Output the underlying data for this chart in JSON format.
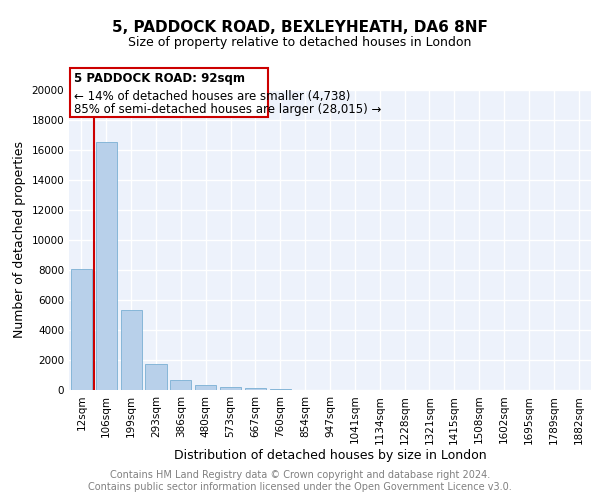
{
  "title1": "5, PADDOCK ROAD, BEXLEYHEATH, DA6 8NF",
  "title2": "Size of property relative to detached houses in London",
  "xlabel": "Distribution of detached houses by size in London",
  "ylabel": "Number of detached properties",
  "categories": [
    "12sqm",
    "106sqm",
    "199sqm",
    "293sqm",
    "386sqm",
    "480sqm",
    "573sqm",
    "667sqm",
    "760sqm",
    "854sqm",
    "947sqm",
    "1041sqm",
    "1134sqm",
    "1228sqm",
    "1321sqm",
    "1415sqm",
    "1508sqm",
    "1602sqm",
    "1695sqm",
    "1789sqm",
    "1882sqm"
  ],
  "values": [
    8050,
    16500,
    5350,
    1750,
    700,
    340,
    190,
    130,
    90,
    0,
    0,
    0,
    0,
    0,
    0,
    0,
    0,
    0,
    0,
    0,
    0
  ],
  "bar_color": "#b8d0ea",
  "bar_edge_color": "#7aafd4",
  "vline_color": "#cc0000",
  "annotation_title": "5 PADDOCK ROAD: 92sqm",
  "annotation_line1": "← 14% of detached houses are smaller (4,738)",
  "annotation_line2": "85% of semi-detached houses are larger (28,015) →",
  "annotation_box_color": "#cc0000",
  "ylim": [
    0,
    20000
  ],
  "yticks": [
    0,
    2000,
    4000,
    6000,
    8000,
    10000,
    12000,
    14000,
    16000,
    18000,
    20000
  ],
  "footer1": "Contains HM Land Registry data © Crown copyright and database right 2024.",
  "footer2": "Contains public sector information licensed under the Open Government Licence v3.0.",
  "bg_color": "#edf2fb",
  "grid_color": "#ffffff",
  "title1_fontsize": 11,
  "title2_fontsize": 9,
  "xlabel_fontsize": 9,
  "ylabel_fontsize": 9,
  "tick_fontsize": 7.5,
  "footer_fontsize": 7,
  "annotation_fontsize": 8.5
}
